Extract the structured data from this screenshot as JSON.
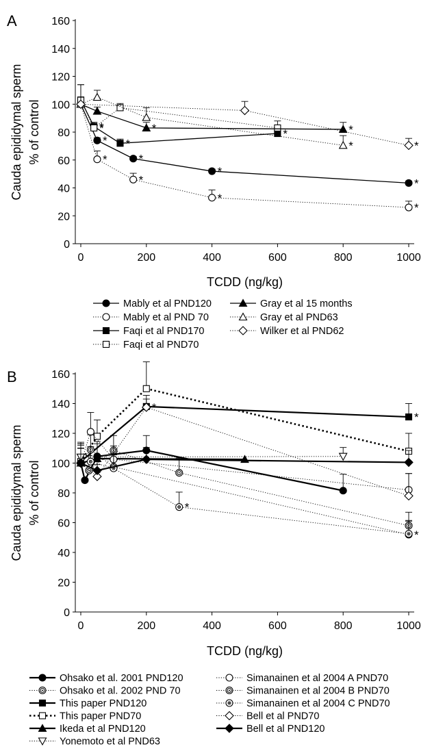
{
  "chart_data": [
    {
      "panel": "A",
      "type": "line",
      "xlabel": "TCDD (ng/kg)",
      "ylabel_lines": [
        "Cauda epididymal sperm",
        "% of control"
      ],
      "xlim": [
        0,
        1000
      ],
      "ylim": [
        0,
        160
      ],
      "xticks": [
        0,
        200,
        400,
        600,
        800,
        1000
      ],
      "yticks": [
        0,
        20,
        40,
        60,
        80,
        100,
        120,
        140,
        160
      ],
      "grid": false,
      "legend_columns": 2,
      "series": [
        {
          "name": "Mably et al PND120",
          "marker": "circle",
          "fill": "black",
          "line": "solid",
          "x": [
            0,
            50,
            160,
            400,
            1000
          ],
          "y": [
            100,
            74,
            61,
            52,
            43.5
          ],
          "err": [
            0,
            2,
            1.5,
            1.5,
            1.5
          ],
          "sig": [
            false,
            true,
            true,
            true,
            true
          ]
        },
        {
          "name": "Mably et al PND 70",
          "marker": "circle",
          "fill": "white",
          "line": "dotted",
          "x": [
            0,
            50,
            160,
            400,
            1000
          ],
          "y": [
            100,
            60.5,
            46,
            33,
            26
          ],
          "err": [
            0,
            6,
            4.5,
            5.5,
            4.5
          ],
          "sig": [
            false,
            true,
            true,
            true,
            true
          ]
        },
        {
          "name": "Faqi et al PND170",
          "marker": "square",
          "fill": "black",
          "line": "solid",
          "x": [
            0,
            40,
            120,
            600
          ],
          "y": [
            103,
            84,
            72,
            79
          ],
          "err": [
            11,
            3,
            3,
            3
          ],
          "sig": [
            false,
            true,
            true,
            true
          ]
        },
        {
          "name": "Faqi et al PND70",
          "marker": "square",
          "fill": "white",
          "line": "dotted",
          "x": [
            0,
            40,
            120,
            600
          ],
          "y": [
            103,
            83,
            97.5,
            83
          ],
          "err": [
            11,
            4,
            3,
            5
          ],
          "sig": [
            false,
            true,
            false,
            false
          ]
        },
        {
          "name": "Gray et al 15 months",
          "marker": "triangle",
          "fill": "black",
          "line": "solid",
          "x": [
            0,
            50,
            200,
            800
          ],
          "y": [
            100,
            95,
            83,
            82
          ],
          "err": [
            5,
            3,
            4,
            5
          ],
          "sig": [
            false,
            false,
            true,
            true
          ]
        },
        {
          "name": "Gray et al PND63",
          "marker": "triangle",
          "fill": "white",
          "line": "dotted",
          "x": [
            0,
            50,
            200,
            800
          ],
          "y": [
            100,
            105,
            90.5,
            70.5
          ],
          "err": [
            5,
            5,
            7,
            7
          ],
          "sig": [
            false,
            false,
            false,
            true
          ]
        },
        {
          "name": "Wilker et al PND62",
          "marker": "diamond",
          "fill": "white",
          "line": "dotted",
          "x": [
            0,
            500,
            1000
          ],
          "y": [
            100,
            95.5,
            70.5
          ],
          "err": [
            5,
            6.5,
            5
          ],
          "sig": [
            false,
            false,
            true
          ]
        }
      ]
    },
    {
      "panel": "B",
      "type": "line",
      "xlabel": "TCDD (ng/kg)",
      "ylabel_lines": [
        "Cauda epididymal sperm",
        "% of control"
      ],
      "xlim": [
        0,
        1000
      ],
      "ylim": [
        0,
        160
      ],
      "xticks": [
        0,
        200,
        400,
        600,
        800,
        1000
      ],
      "yticks": [
        0,
        20,
        40,
        60,
        80,
        100,
        120,
        140,
        160
      ],
      "grid": false,
      "legend_columns": 2,
      "series": [
        {
          "name": "Ohsako et al. 2001 PND120",
          "marker": "circle",
          "fill": "black",
          "line": "thick",
          "x": [
            0,
            12.5,
            50,
            200,
            800
          ],
          "y": [
            100,
            88.5,
            104.5,
            108.5,
            81.5
          ],
          "err": [
            12,
            0,
            10,
            10,
            11
          ],
          "sig": [
            false,
            false,
            false,
            false,
            false
          ]
        },
        {
          "name": "Ohsako et al. 2002 PND 70",
          "marker": "circle-dot",
          "fill": "white",
          "line": "dotted",
          "x": [
            0,
            25,
            100,
            300,
            1000
          ],
          "y": [
            100,
            95,
            108.5,
            93.5,
            58
          ],
          "err": [
            10,
            10,
            10,
            10,
            9
          ],
          "sig": [
            false,
            false,
            false,
            false,
            false
          ]
        },
        {
          "name": "This paper PND120",
          "marker": "square",
          "fill": "black",
          "line": "thick",
          "x": [
            0,
            200,
            1000
          ],
          "y": [
            101,
            138,
            131
          ],
          "err": [
            12,
            5,
            9
          ],
          "sig": [
            false,
            false,
            true
          ]
        },
        {
          "name": "This paper PND70",
          "marker": "square",
          "fill": "white",
          "line": "thick-dotted",
          "x": [
            0,
            50,
            200,
            1000
          ],
          "y": [
            101,
            118,
            150,
            108
          ],
          "err": [
            12,
            11,
            18,
            12
          ],
          "sig": [
            false,
            false,
            false,
            false
          ]
        },
        {
          "name": "Ikeda et al PND120",
          "marker": "triangle",
          "fill": "black",
          "line": "thick",
          "x": [
            0,
            50,
            500
          ],
          "y": [
            100,
            103,
            102.5
          ],
          "err": [
            10,
            10,
            0
          ],
          "sig": [
            false,
            false,
            false
          ]
        },
        {
          "name": "Yonemoto et al PND63",
          "marker": "triangle-down",
          "fill": "white",
          "line": "dotted",
          "x": [
            0,
            800
          ],
          "y": [
            104,
            104.5
          ],
          "err": [
            10,
            6
          ],
          "sig": [
            false,
            false
          ]
        },
        {
          "name": "Simanainen et al 2004 A PND70",
          "marker": "circle",
          "fill": "white",
          "line": "dotted",
          "x": [
            0,
            30,
            100,
            1000
          ],
          "y": [
            100,
            121,
            102.5,
            82
          ],
          "err": [
            10,
            13,
            9,
            11
          ],
          "sig": [
            false,
            false,
            false,
            false
          ]
        },
        {
          "name": "Simanainen et al 2004 B PND70",
          "marker": "circle-dot",
          "fill": "white",
          "line": "dotted",
          "x": [
            0,
            30,
            100,
            1000
          ],
          "y": [
            100,
            109,
            97.5,
            52
          ],
          "err": [
            10,
            10,
            9,
            9
          ],
          "sig": [
            false,
            false,
            false,
            true
          ]
        },
        {
          "name": "Simanainen et al 2004 C PND70",
          "marker": "circle-dot-small",
          "fill": "white",
          "line": "dotted",
          "x": [
            0,
            30,
            100,
            300,
            1000
          ],
          "y": [
            100,
            101,
            96.5,
            70.5,
            52.5
          ],
          "err": [
            10,
            10,
            9,
            10,
            9
          ],
          "sig": [
            false,
            false,
            false,
            true,
            false
          ]
        },
        {
          "name": "Bell et al PND70",
          "marker": "diamond",
          "fill": "white",
          "line": "dotted",
          "x": [
            0,
            50,
            200,
            1000
          ],
          "y": [
            100,
            91,
            137.5,
            78
          ],
          "err": [
            10,
            8,
            8,
            15
          ],
          "sig": [
            false,
            false,
            true,
            false
          ]
        },
        {
          "name": "Bell et al PND120",
          "marker": "diamond",
          "fill": "black",
          "line": "thick",
          "x": [
            0,
            50,
            200,
            1000
          ],
          "y": [
            100,
            95,
            102.5,
            100.5
          ],
          "err": [
            10,
            8,
            8,
            8
          ],
          "sig": [
            false,
            false,
            false,
            false
          ]
        }
      ]
    }
  ],
  "sig_marker": "*"
}
